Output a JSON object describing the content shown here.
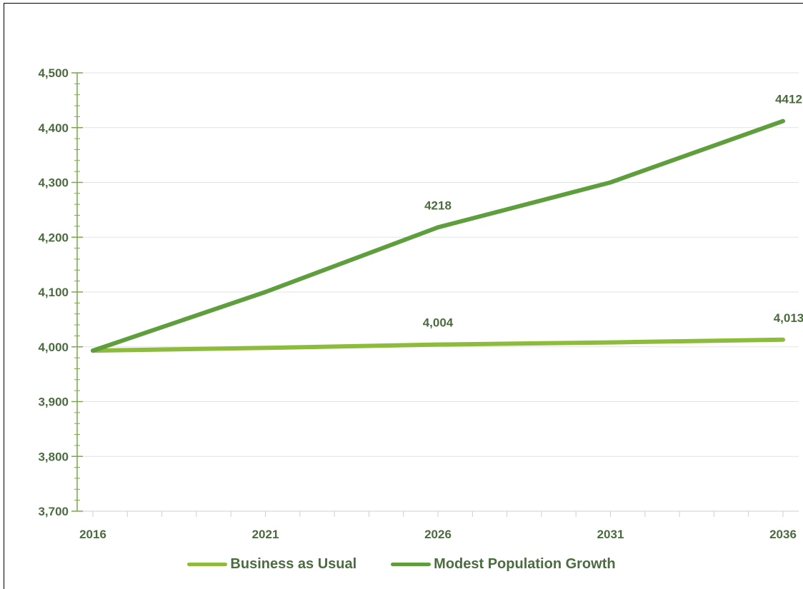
{
  "chart_data": {
    "type": "line",
    "title": "",
    "xlabel": "",
    "ylabel": "",
    "x": [
      2016,
      2021,
      2026,
      2031,
      2036
    ],
    "x_ticks": [
      "2016",
      "2021",
      "2026",
      "2031",
      "2036"
    ],
    "ylim": [
      3700,
      4500
    ],
    "y_ticks": [
      "3,700",
      "3,800",
      "3,900",
      "4,000",
      "4,100",
      "4,200",
      "4,300",
      "4,400",
      "4,500"
    ],
    "grid": "horizontal",
    "legend_position": "bottom",
    "series": [
      {
        "name": "Business as Usual",
        "color": "#8dbb3b",
        "values": [
          3993,
          3998,
          4004,
          4008,
          4013
        ],
        "labels": [
          {
            "x": 2026,
            "text": "4,004"
          },
          {
            "x": 2036,
            "text": "4,013"
          }
        ]
      },
      {
        "name": "Modest Population Growth",
        "color": "#5e9e3c",
        "values": [
          3993,
          4100,
          4218,
          4300,
          4412
        ],
        "labels": [
          {
            "x": 2026,
            "text": "4218"
          },
          {
            "x": 2036,
            "text": "4412"
          }
        ]
      }
    ]
  }
}
